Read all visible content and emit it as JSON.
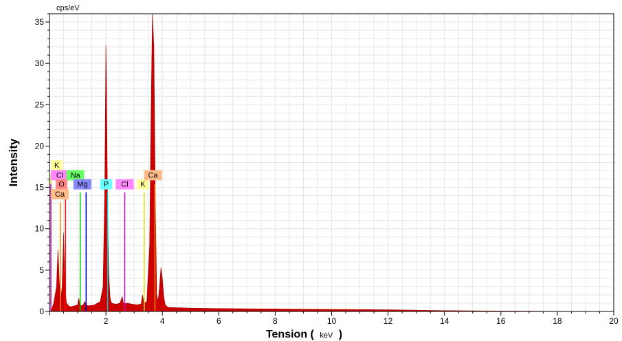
{
  "chart_data": {
    "type": "area",
    "ylabel": "Intensity",
    "xlabel_main": "Tension (",
    "xlabel_unit": "keV",
    "xlabel_close": ")",
    "y_unit": "cps/eV",
    "xlim": [
      0,
      20
    ],
    "ylim": [
      0,
      36
    ],
    "x_ticks": [
      2,
      4,
      6,
      8,
      10,
      12,
      14,
      16,
      18,
      20
    ],
    "y_ticks": [
      0,
      5,
      10,
      15,
      20,
      25,
      30,
      35
    ],
    "grid": true,
    "series": [
      {
        "color": "#cc0000",
        "x": [
          0.05,
          0.15,
          0.25,
          0.3,
          0.35,
          0.4,
          0.45,
          0.5,
          0.55,
          0.6,
          0.65,
          0.7,
          0.8,
          0.9,
          1.0,
          1.04,
          1.08,
          1.12,
          1.2,
          1.25,
          1.3,
          1.35,
          1.45,
          1.6,
          1.8,
          1.9,
          1.96,
          2.0,
          2.02,
          2.06,
          2.1,
          2.15,
          2.2,
          2.3,
          2.4,
          2.5,
          2.58,
          2.62,
          2.66,
          2.75,
          2.9,
          3.1,
          3.25,
          3.3,
          3.35,
          3.45,
          3.55,
          3.6,
          3.65,
          3.7,
          3.75,
          3.8,
          3.85,
          3.9,
          3.95,
          4.0,
          4.05,
          4.1,
          4.2,
          4.5,
          5.0,
          6.0,
          8.0,
          10.0,
          12.0,
          13.0,
          14.0,
          16.0,
          18.0,
          20.0
        ],
        "y": [
          0,
          1.0,
          3.0,
          7.5,
          3.5,
          1.5,
          3.0,
          9.5,
          3.0,
          1.0,
          0.8,
          0.6,
          0.6,
          0.7,
          0.8,
          1.6,
          0.8,
          0.7,
          0.8,
          1.2,
          0.8,
          0.7,
          0.7,
          0.8,
          1.2,
          3.0,
          15.0,
          32.2,
          28.0,
          12.0,
          4.5,
          1.6,
          1.0,
          0.9,
          0.9,
          1.0,
          1.8,
          1.0,
          0.9,
          1.0,
          0.9,
          0.8,
          0.9,
          2.0,
          1.0,
          1.2,
          8.0,
          24.0,
          36.0,
          32.0,
          14.0,
          2.0,
          1.2,
          3.0,
          5.3,
          4.0,
          1.8,
          0.8,
          0.5,
          0.45,
          0.4,
          0.35,
          0.3,
          0.25,
          0.2,
          0.15,
          0.1,
          0.05,
          0.02,
          0.0
        ]
      }
    ],
    "element_markers": [
      {
        "label": "K",
        "x": 0.05,
        "y": 17.3,
        "color": "#ffff99",
        "line_x": 0.0,
        "line_color": "#e0e000",
        "line_top": 16.6
      },
      {
        "label": "Cl",
        "x": 0.05,
        "y": 16.1,
        "color": "#ff88ff",
        "line_x": 0.0,
        "line_color": "#cc00cc",
        "line_top": 15.4
      },
      {
        "label": "Na",
        "x": 0.6,
        "y": 16.1,
        "color": "#66ff66",
        "line_x": 1.04,
        "line_color": "#00cc00",
        "line_top": 14.4
      },
      {
        "label": "O",
        "x": 0.22,
        "y": 15.0,
        "color": "#ff8888",
        "line_x": 0.52,
        "line_color": "#ff0000",
        "line_top": 14.4
      },
      {
        "label": "Mg",
        "x": 0.85,
        "y": 15.0,
        "color": "#8888ff",
        "line_x": 1.25,
        "line_color": "#0000cc",
        "line_top": 14.4
      },
      {
        "label": "P",
        "x": 1.8,
        "y": 15.0,
        "color": "#66ffff",
        "line_x": 2.01,
        "line_color": "#00cccc",
        "line_top": 14.4
      },
      {
        "label": "Cl",
        "x": 2.35,
        "y": 15.0,
        "color": "#ff88ff",
        "line_x": 2.62,
        "line_color": "#cc00cc",
        "line_top": 14.4
      },
      {
        "label": "K",
        "x": 3.1,
        "y": 15.0,
        "color": "#ffff99",
        "line_x": 3.31,
        "line_color": "#e0e000",
        "line_top": 14.4
      },
      {
        "label": "Ca",
        "x": 3.35,
        "y": 16.1,
        "color": "#ffbb88",
        "line_x": 3.69,
        "line_color": "#ff8800",
        "line_top": 15.4
      },
      {
        "label": "Ca",
        "x": 0.05,
        "y": 13.8,
        "color": "#ffbb88",
        "line_x": 0.34,
        "line_color": "#ff8800",
        "line_top": 13.2
      }
    ]
  }
}
